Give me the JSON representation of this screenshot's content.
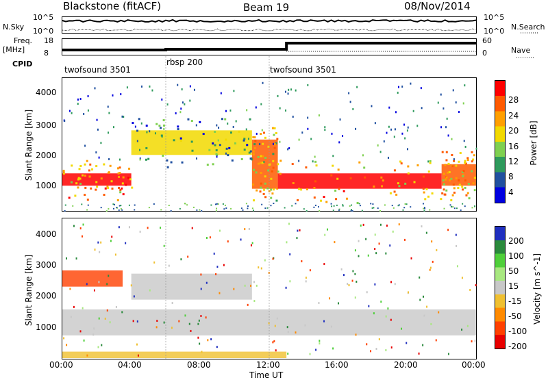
{
  "header": {
    "station": "Blackstone (fitACF)",
    "beam": "Beam 19",
    "date": "08/Nov/2014"
  },
  "noise_panel": {
    "left_label": "N.Sky",
    "left_ticks": [
      "10^5",
      "10^0"
    ],
    "right_ticks": [
      "10^5",
      "10^0"
    ],
    "right_label": "N.Search"
  },
  "freq_panel": {
    "left_label": "Freq.",
    "left_unit": "[MHz]",
    "left_ticks": [
      "18",
      "8"
    ],
    "right_ticks": [
      "60",
      "0"
    ],
    "right_label": "Nave"
  },
  "cpid": {
    "label": "CPID",
    "segments": [
      {
        "name": "twofsound 3501",
        "start": "00:00",
        "end": "06:00"
      },
      {
        "name": "rbsp 200",
        "start": "06:00",
        "end": "12:00"
      },
      {
        "name": "twofsound 3501",
        "start": "12:00",
        "end": "24:00"
      }
    ]
  },
  "panels": {
    "ylabel": "Slant Range [km]",
    "yticks": [
      "4000",
      "3000",
      "2000",
      "1000"
    ],
    "xlabel": "Time UT",
    "xticks": [
      "00:00",
      "04:00",
      "08:00",
      "12:00",
      "16:00",
      "20:00",
      "00:00"
    ]
  },
  "power_colorbar": {
    "label": "Power [dB]",
    "ticks": [
      "28",
      "24",
      "20",
      "16",
      "12",
      "8",
      "4"
    ],
    "colors": [
      "#ff0000",
      "#ff5a00",
      "#ff9f00",
      "#f2d900",
      "#7fd050",
      "#2e9a5c",
      "#2050a0",
      "#0000e0"
    ]
  },
  "velocity_colorbar": {
    "label": "Velocity [m s^-1]",
    "ticks": [
      "200",
      "100",
      "50",
      "15",
      "-15",
      "-50",
      "-100",
      "-200"
    ],
    "colors": [
      "#1f2fbf",
      "#2a8a3c",
      "#4fcf3a",
      "#a8e880",
      "#c8c8c8",
      "#f0c030",
      "#ff8a00",
      "#ff4000",
      "#e80000"
    ]
  },
  "chart_data": [
    {
      "type": "heatmap",
      "title": "Power",
      "xlabel": "Time UT",
      "ylabel": "Slant Range [km]",
      "x_range": [
        "00:00",
        "24:00"
      ],
      "ylim": [
        180,
        4500
      ],
      "colorbar": {
        "label": "Power [dB]",
        "range": [
          0,
          30
        ]
      },
      "bands": [
        {
          "start_hour": 0,
          "end_hour": 4,
          "range_km": [
            1000,
            1400
          ],
          "power_db": 28
        },
        {
          "start_hour": 4,
          "end_hour": 11,
          "range_km": [
            2000,
            2800
          ],
          "power_db": 16
        },
        {
          "start_hour": 11,
          "end_hour": 12.5,
          "range_km": [
            900,
            2500
          ],
          "power_db": 24
        },
        {
          "start_hour": 12.5,
          "end_hour": 22,
          "range_km": [
            900,
            1400
          ],
          "power_db": 28
        },
        {
          "start_hour": 22,
          "end_hour": 24,
          "range_km": [
            1000,
            1700
          ],
          "power_db": 26
        }
      ]
    },
    {
      "type": "heatmap",
      "title": "Velocity",
      "xlabel": "Time UT",
      "ylabel": "Slant Range [km]",
      "x_range": [
        "00:00",
        "24:00"
      ],
      "ylim": [
        180,
        4500
      ],
      "colorbar": {
        "label": "Velocity [m s^-1]",
        "range": [
          -200,
          200
        ]
      },
      "bands": [
        {
          "start_hour": 0,
          "end_hour": 3.5,
          "range_km": [
            2400,
            2900
          ],
          "velocity": -120
        },
        {
          "start_hour": 0,
          "end_hour": 24,
          "range_km": [
            900,
            1700
          ],
          "velocity": 0
        },
        {
          "start_hour": 4,
          "end_hour": 11,
          "range_km": [
            2000,
            2800
          ],
          "velocity": 0
        },
        {
          "start_hour": 0,
          "end_hour": 13,
          "range_km": [
            200,
            400
          ],
          "velocity": -50
        }
      ]
    }
  ]
}
